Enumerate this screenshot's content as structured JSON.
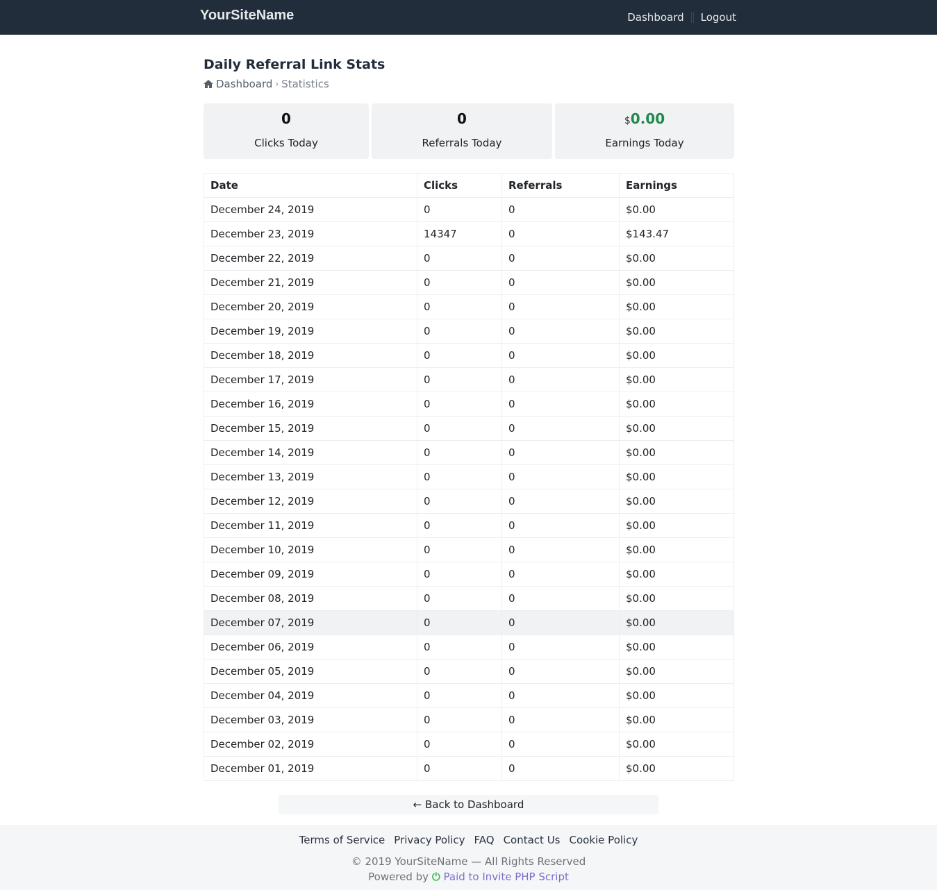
{
  "nav": {
    "brand": "YourSiteName",
    "links": [
      "Dashboard",
      "Logout"
    ]
  },
  "page": {
    "title": "Daily Referral Link Stats",
    "breadcrumb": {
      "home": "Dashboard",
      "separator": "›",
      "current": "Statistics"
    }
  },
  "stats": [
    {
      "value": "0",
      "label": "Clicks Today"
    },
    {
      "value": "0",
      "label": "Referrals Today"
    },
    {
      "currency": "$",
      "value": "0.00",
      "label": "Earnings Today"
    }
  ],
  "colors": {
    "nav": "#212d3a",
    "earnings_green": "#1f8a4c",
    "link_purple": "#7b6fd0"
  },
  "table": {
    "headers": [
      "Date",
      "Clicks",
      "Referrals",
      "Earnings"
    ],
    "rows": [
      [
        "December 24, 2019",
        "0",
        "0",
        "$0.00"
      ],
      [
        "December 23, 2019",
        "14347",
        "0",
        "$143.47"
      ],
      [
        "December 22, 2019",
        "0",
        "0",
        "$0.00"
      ],
      [
        "December 21, 2019",
        "0",
        "0",
        "$0.00"
      ],
      [
        "December 20, 2019",
        "0",
        "0",
        "$0.00"
      ],
      [
        "December 19, 2019",
        "0",
        "0",
        "$0.00"
      ],
      [
        "December 18, 2019",
        "0",
        "0",
        "$0.00"
      ],
      [
        "December 17, 2019",
        "0",
        "0",
        "$0.00"
      ],
      [
        "December 16, 2019",
        "0",
        "0",
        "$0.00"
      ],
      [
        "December 15, 2019",
        "0",
        "0",
        "$0.00"
      ],
      [
        "December 14, 2019",
        "0",
        "0",
        "$0.00"
      ],
      [
        "December 13, 2019",
        "0",
        "0",
        "$0.00"
      ],
      [
        "December 12, 2019",
        "0",
        "0",
        "$0.00"
      ],
      [
        "December 11, 2019",
        "0",
        "0",
        "$0.00"
      ],
      [
        "December 10, 2019",
        "0",
        "0",
        "$0.00"
      ],
      [
        "December 09, 2019",
        "0",
        "0",
        "$0.00"
      ],
      [
        "December 08, 2019",
        "0",
        "0",
        "$0.00"
      ],
      [
        "December 07, 2019",
        "0",
        "0",
        "$0.00"
      ],
      [
        "December 06, 2019",
        "0",
        "0",
        "$0.00"
      ],
      [
        "December 05, 2019",
        "0",
        "0",
        "$0.00"
      ],
      [
        "December 04, 2019",
        "0",
        "0",
        "$0.00"
      ],
      [
        "December 03, 2019",
        "0",
        "0",
        "$0.00"
      ],
      [
        "December 02, 2019",
        "0",
        "0",
        "$0.00"
      ],
      [
        "December 01, 2019",
        "0",
        "0",
        "$0.00"
      ]
    ],
    "highlighted_row": "December 07, 2019"
  },
  "back": {
    "label": "← Back to Dashboard"
  },
  "footer": {
    "links": [
      "Terms of Service",
      "Privacy Policy",
      "FAQ",
      "Contact Us",
      "Cookie Policy"
    ],
    "copyright": "© 2019 YourSiteName — All Rights Reserved",
    "powered_prefix": "Powered by",
    "powered_link": "Paid to Invite PHP Script"
  }
}
